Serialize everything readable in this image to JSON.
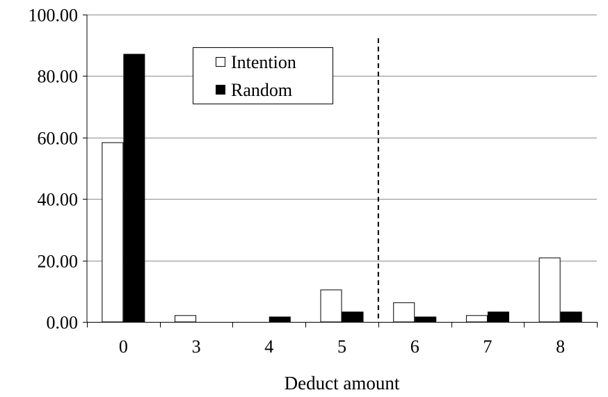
{
  "chart_data": {
    "type": "bar",
    "xlabel": "Deduct amount",
    "ylabel": "",
    "categories": [
      "0",
      "3",
      "4",
      "5",
      "6",
      "7",
      "8"
    ],
    "series": [
      {
        "name": "Intention",
        "values": [
          58.33,
          2.08,
          0.0,
          10.42,
          6.25,
          2.08,
          20.83
        ],
        "color": "#ffffff",
        "stroke": "#000000"
      },
      {
        "name": "Random",
        "values": [
          87.1,
          0.0,
          1.61,
          3.23,
          1.61,
          3.23,
          3.23
        ],
        "color": "#000000",
        "stroke": "#000000"
      }
    ],
    "ylim": [
      0,
      100
    ],
    "yticks": [
      0,
      20,
      40,
      60,
      80,
      100
    ],
    "ytick_labels": [
      "0.00",
      "20.00",
      "40.00",
      "60.00",
      "80.00",
      "100.00"
    ],
    "grid": true,
    "legend_position": "top-left",
    "divider_after_category": "5",
    "divider_style": "dashed"
  }
}
